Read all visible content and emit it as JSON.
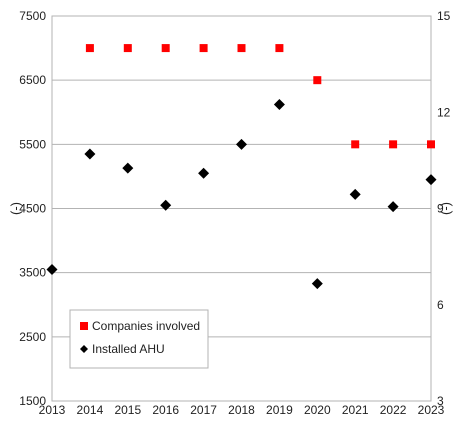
{
  "chart_data": {
    "type": "scatter",
    "title": "",
    "xlabel": "",
    "ylabel": "(-)",
    "y2label": "(-)",
    "x_ticks": [
      2013,
      2014,
      2015,
      2016,
      2017,
      2018,
      2019,
      2020,
      2021,
      2022,
      2023
    ],
    "xlim": [
      2013,
      2023
    ],
    "ylim": [
      1500,
      7500
    ],
    "y_ticks": [
      1500,
      2500,
      3500,
      4500,
      5500,
      6500,
      7500
    ],
    "y2lim": [
      3,
      15
    ],
    "y2_ticks": [
      3,
      6,
      9,
      12,
      15
    ],
    "grid": "horizontal",
    "legend_position": "bottom-left",
    "series": [
      {
        "name": "Companies involved",
        "axis": "right",
        "marker": "square",
        "color": "#ff0000",
        "points": [
          {
            "x": 2014,
            "y": 14
          },
          {
            "x": 2015,
            "y": 14
          },
          {
            "x": 2016,
            "y": 14
          },
          {
            "x": 2017,
            "y": 14
          },
          {
            "x": 2018,
            "y": 14
          },
          {
            "x": 2019,
            "y": 14
          },
          {
            "x": 2020,
            "y": 13
          },
          {
            "x": 2021,
            "y": 11
          },
          {
            "x": 2022,
            "y": 11
          },
          {
            "x": 2023,
            "y": 11
          }
        ]
      },
      {
        "name": "Installed AHU",
        "axis": "left",
        "marker": "diamond",
        "color": "#000000",
        "points": [
          {
            "x": 2013,
            "y": 3550
          },
          {
            "x": 2014,
            "y": 5350
          },
          {
            "x": 2015,
            "y": 5130
          },
          {
            "x": 2016,
            "y": 4550
          },
          {
            "x": 2017,
            "y": 5050
          },
          {
            "x": 2018,
            "y": 5500
          },
          {
            "x": 2019,
            "y": 6120
          },
          {
            "x": 2020,
            "y": 3330
          },
          {
            "x": 2021,
            "y": 4720
          },
          {
            "x": 2022,
            "y": 4530
          },
          {
            "x": 2023,
            "y": 4950
          }
        ]
      }
    ]
  }
}
